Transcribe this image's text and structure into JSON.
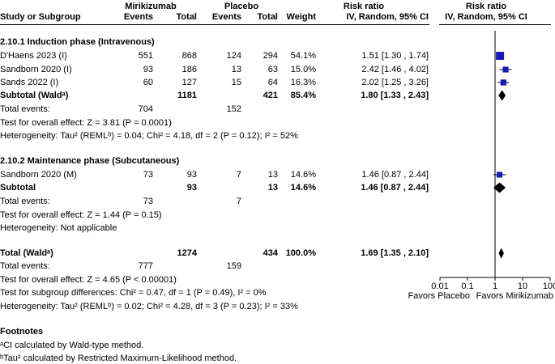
{
  "header": {
    "group_exp": "Mirikizumab",
    "group_ctl": "Placebo",
    "col_study": "Study or Subgroup",
    "col_events": "Events",
    "col_total": "Total",
    "col_weight": "Weight",
    "rr_title": "Risk ratio",
    "rr_sub": "IV, Random, 95% CI",
    "plot_title": "Risk ratio",
    "plot_sub": "IV, Random, 95% CI"
  },
  "subgroups": [
    {
      "title": "2.10.1 Induction phase (Intravenous)",
      "studies": [
        {
          "name": "D'Haens 2023 (I)",
          "e_events": "551",
          "e_total": "868",
          "c_events": "124",
          "c_total": "294",
          "weight": "54.1%",
          "ci": "1.51 [1.30 , 1.74]"
        },
        {
          "name": "Sandborn 2020 (I)",
          "e_events": "93",
          "e_total": "186",
          "c_events": "13",
          "c_total": "63",
          "weight": "15.0%",
          "ci": "2.42 [1.46 , 4.02]"
        },
        {
          "name": "Sands 2022 (I)",
          "e_events": "60",
          "e_total": "127",
          "c_events": "15",
          "c_total": "64",
          "weight": "16.3%",
          "ci": "2.02 [1.25 , 3.26]"
        }
      ],
      "subtotal": {
        "label": "Subtotal (Waldᵃ)",
        "e_total": "1181",
        "c_total": "421",
        "weight": "85.4%",
        "ci": "1.80 [1.33 , 2.43]"
      },
      "total_events": {
        "label": "Total events:",
        "e": "704",
        "c": "152"
      },
      "overall_effect": "Test for overall effect: Z = 3.81 (P = 0.0001)",
      "heterogeneity": "Heterogeneity: Tau² (REMLᵇ) = 0.04; Chi² = 4.18, df = 2 (P = 0.12); I² = 52%"
    },
    {
      "title": "2.10.2 Maintenance phase  (Subcutaneous)",
      "studies": [
        {
          "name": "Sandborn 2020 (M)",
          "e_events": "73",
          "e_total": "93",
          "c_events": "7",
          "c_total": "13",
          "weight": "14.6%",
          "ci": "1.46 [0.87 , 2.44]"
        }
      ],
      "subtotal": {
        "label": "Subtotal",
        "e_total": "93",
        "c_total": "13",
        "weight": "14.6%",
        "ci": "1.46 [0.87 , 2.44]"
      },
      "total_events": {
        "label": "Total events:",
        "e": "73",
        "c": "7"
      },
      "overall_effect": "Test for overall effect: Z = 1.44 (P = 0.15)",
      "heterogeneity": "Heterogeneity: Not applicable"
    }
  ],
  "total": {
    "label": "Total (Waldᵃ)",
    "e_total": "1274",
    "c_total": "434",
    "weight": "100.0%",
    "ci": "1.69 [1.35 , 2.10]",
    "events_label": "Total events:",
    "e_events": "777",
    "c_events": "159",
    "overall_effect": "Test for overall effect: Z = 4.65 (P < 0.00001)",
    "subgroup_diff": "Test for subgroup differences: Chi² = 0.47, df = 1 (P = 0.49), I² = 0%",
    "heterogeneity": "Heterogeneity: Tau² (REMLᵇ) = 0.02; Chi² = 4.28, df = 3 (P = 0.23); I² = 33%"
  },
  "footnotes": {
    "title": "Footnotes",
    "a": "ᵃCI calculated by Wald-type method.",
    "b": "ᵇTau² calculated by Restricted Maximum-Likelihood method."
  },
  "colors": {
    "study_marker": "#1a1ab8",
    "diamond": "#000000",
    "axis": "#000000"
  },
  "chart_data": {
    "type": "forest",
    "x_scale": "log",
    "xlim": [
      0.01,
      100
    ],
    "x_ticks": [
      "0.01",
      "0.1",
      "1",
      "10",
      "100"
    ],
    "x_tick_values": [
      0.01,
      0.1,
      1,
      10,
      100
    ],
    "null_line": 1,
    "favors_left": "Favors Placebo",
    "favors_right": "Favors Mirikizumab",
    "studies": [
      {
        "name": "D'Haens 2023 (I)",
        "rr": 1.51,
        "lo": 1.3,
        "hi": 1.74,
        "weight": 54.1
      },
      {
        "name": "Sandborn 2020 (I)",
        "rr": 2.42,
        "lo": 1.46,
        "hi": 4.02,
        "weight": 15.0
      },
      {
        "name": "Sands 2022 (I)",
        "rr": 2.02,
        "lo": 1.25,
        "hi": 3.26,
        "weight": 16.3
      },
      {
        "name": "Sandborn 2020 (M)",
        "rr": 1.46,
        "lo": 0.87,
        "hi": 2.44,
        "weight": 14.6
      }
    ],
    "diamonds": [
      {
        "name": "Subtotal 2.10.1",
        "rr": 1.8,
        "lo": 1.33,
        "hi": 2.43
      },
      {
        "name": "Subtotal 2.10.2",
        "rr": 1.46,
        "lo": 0.87,
        "hi": 2.44
      },
      {
        "name": "Total",
        "rr": 1.69,
        "lo": 1.35,
        "hi": 2.1
      }
    ]
  }
}
